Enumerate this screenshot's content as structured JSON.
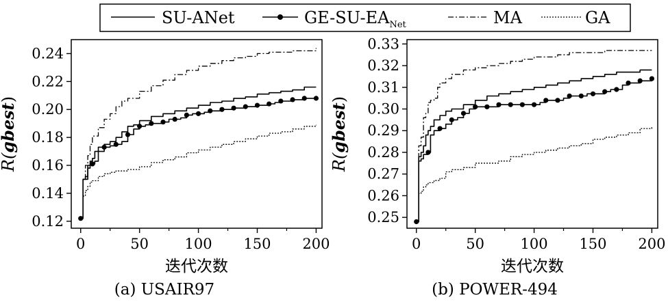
{
  "legend": {
    "items": [
      {
        "key": "suanet",
        "label": "SU-ANet",
        "sub": ""
      },
      {
        "key": "gesu",
        "label": "GE-SU-EA",
        "sub": "Net"
      },
      {
        "key": "ma",
        "label": "MA",
        "sub": ""
      },
      {
        "key": "ga",
        "label": "GA",
        "sub": ""
      }
    ]
  },
  "chart_data": [
    {
      "type": "line",
      "caption": "(a) USAIR97",
      "xlabel": "迭代次数",
      "ylabel_prefix": "R(",
      "ylabel_main": "gbest",
      "ylabel_suffix": ")",
      "xlim": [
        -8,
        205
      ],
      "ylim": [
        0.115,
        0.25
      ],
      "xticks": [
        0,
        50,
        100,
        150,
        200
      ],
      "xtick_labels": [
        "0",
        "50",
        "100",
        "150",
        "200"
      ],
      "yticks": [
        0.12,
        0.14,
        0.16,
        0.18,
        0.2,
        0.22,
        0.24
      ],
      "ytick_labels": [
        "0.12",
        "0.14",
        "0.16",
        "0.18",
        "0.20",
        "0.22",
        "0.24"
      ],
      "series": [
        {
          "key": "ma",
          "style": "dashdot",
          "x": [
            0,
            2,
            4,
            6,
            8,
            10,
            15,
            20,
            25,
            30,
            35,
            40,
            50,
            60,
            70,
            80,
            90,
            100,
            110,
            120,
            130,
            140,
            150,
            160,
            170,
            180,
            190,
            200
          ],
          "y": [
            0.122,
            0.15,
            0.16,
            0.167,
            0.175,
            0.181,
            0.187,
            0.193,
            0.197,
            0.202,
            0.206,
            0.208,
            0.213,
            0.217,
            0.221,
            0.225,
            0.228,
            0.231,
            0.233,
            0.235,
            0.237,
            0.238,
            0.24,
            0.241,
            0.241,
            0.242,
            0.242,
            0.244
          ]
        },
        {
          "key": "suanet",
          "style": "solid",
          "x": [
            0,
            2,
            4,
            6,
            8,
            10,
            12,
            15,
            20,
            25,
            30,
            35,
            40,
            45,
            50,
            60,
            70,
            80,
            90,
            100,
            110,
            120,
            130,
            140,
            150,
            160,
            170,
            180,
            190,
            200
          ],
          "y": [
            0.122,
            0.15,
            0.152,
            0.16,
            0.163,
            0.165,
            0.17,
            0.173,
            0.175,
            0.177,
            0.18,
            0.184,
            0.188,
            0.189,
            0.192,
            0.195,
            0.197,
            0.199,
            0.201,
            0.203,
            0.205,
            0.206,
            0.208,
            0.209,
            0.211,
            0.212,
            0.213,
            0.214,
            0.216,
            0.216
          ]
        },
        {
          "key": "gesu",
          "style": "solid-marker",
          "x": [
            0,
            2,
            4,
            6,
            8,
            10,
            12,
            15,
            20,
            25,
            30,
            35,
            40,
            45,
            50,
            55,
            60,
            65,
            70,
            75,
            80,
            85,
            90,
            95,
            100,
            105,
            110,
            115,
            120,
            125,
            130,
            135,
            140,
            145,
            150,
            155,
            160,
            165,
            170,
            175,
            180,
            185,
            190,
            195,
            200
          ],
          "y": [
            0.122,
            0.15,
            0.15,
            0.158,
            0.16,
            0.161,
            0.163,
            0.17,
            0.173,
            0.174,
            0.175,
            0.177,
            0.182,
            0.186,
            0.188,
            0.189,
            0.19,
            0.19,
            0.191,
            0.193,
            0.193,
            0.194,
            0.196,
            0.197,
            0.197,
            0.198,
            0.199,
            0.199,
            0.2,
            0.2,
            0.201,
            0.201,
            0.202,
            0.202,
            0.203,
            0.203,
            0.204,
            0.205,
            0.206,
            0.206,
            0.207,
            0.207,
            0.208,
            0.208,
            0.208
          ]
        },
        {
          "key": "ga",
          "style": "dotted",
          "x": [
            0,
            2,
            4,
            6,
            8,
            10,
            15,
            20,
            25,
            30,
            40,
            50,
            60,
            70,
            80,
            90,
            100,
            110,
            120,
            130,
            140,
            150,
            160,
            170,
            180,
            190,
            200
          ],
          "y": [
            0.122,
            0.138,
            0.142,
            0.145,
            0.148,
            0.149,
            0.152,
            0.154,
            0.155,
            0.156,
            0.157,
            0.159,
            0.162,
            0.164,
            0.166,
            0.169,
            0.171,
            0.173,
            0.175,
            0.177,
            0.179,
            0.181,
            0.183,
            0.184,
            0.186,
            0.188,
            0.189
          ]
        }
      ],
      "marker_x": [
        0,
        10,
        20,
        30,
        40,
        50,
        60,
        70,
        80,
        90,
        100,
        110,
        120,
        130,
        140,
        150,
        160,
        170,
        180,
        190,
        200
      ]
    },
    {
      "type": "line",
      "caption": "(b) POWER-494",
      "xlabel": "迭代次数",
      "ylabel_prefix": "R(",
      "ylabel_main": "gbest",
      "ylabel_suffix": ")",
      "xlim": [
        -8,
        205
      ],
      "ylim": [
        0.245,
        0.332
      ],
      "xticks": [
        0,
        50,
        100,
        150,
        200
      ],
      "xtick_labels": [
        "0",
        "50",
        "100",
        "150",
        "200"
      ],
      "yticks": [
        0.25,
        0.26,
        0.27,
        0.28,
        0.29,
        0.3,
        0.31,
        0.32,
        0.33
      ],
      "ytick_labels": [
        "0.25",
        "0.26",
        "0.27",
        "0.28",
        "0.29",
        "0.30",
        "0.31",
        "0.32",
        "0.33"
      ],
      "series": [
        {
          "key": "ma",
          "style": "dashdot",
          "x": [
            0,
            2,
            4,
            6,
            8,
            10,
            12,
            15,
            18,
            20,
            25,
            30,
            40,
            50,
            60,
            70,
            80,
            90,
            100,
            110,
            120,
            130,
            140,
            150,
            160,
            170,
            180,
            190,
            200
          ],
          "y": [
            0.248,
            0.283,
            0.287,
            0.296,
            0.298,
            0.303,
            0.304,
            0.305,
            0.31,
            0.312,
            0.314,
            0.316,
            0.318,
            0.319,
            0.32,
            0.321,
            0.322,
            0.323,
            0.324,
            0.324,
            0.325,
            0.326,
            0.326,
            0.326,
            0.327,
            0.327,
            0.327,
            0.327,
            0.327
          ]
        },
        {
          "key": "suanet",
          "style": "solid",
          "x": [
            0,
            2,
            4,
            6,
            8,
            10,
            12,
            15,
            20,
            25,
            30,
            40,
            50,
            60,
            70,
            80,
            90,
            100,
            110,
            120,
            130,
            140,
            150,
            160,
            170,
            180,
            190,
            200
          ],
          "y": [
            0.248,
            0.278,
            0.28,
            0.283,
            0.288,
            0.29,
            0.292,
            0.295,
            0.297,
            0.299,
            0.3,
            0.302,
            0.304,
            0.306,
            0.307,
            0.308,
            0.309,
            0.31,
            0.311,
            0.312,
            0.313,
            0.314,
            0.315,
            0.316,
            0.317,
            0.317,
            0.318,
            0.318
          ]
        },
        {
          "key": "gesu",
          "style": "solid-marker",
          "x": [
            0,
            2,
            4,
            6,
            8,
            10,
            12,
            15,
            20,
            25,
            30,
            35,
            40,
            45,
            50,
            55,
            60,
            65,
            70,
            75,
            80,
            85,
            90,
            95,
            100,
            105,
            110,
            115,
            120,
            125,
            130,
            135,
            140,
            145,
            150,
            155,
            160,
            165,
            170,
            175,
            180,
            185,
            190,
            195,
            200
          ],
          "y": [
            0.248,
            0.276,
            0.277,
            0.279,
            0.279,
            0.28,
            0.288,
            0.29,
            0.291,
            0.293,
            0.295,
            0.296,
            0.298,
            0.3,
            0.301,
            0.301,
            0.301,
            0.301,
            0.302,
            0.302,
            0.302,
            0.302,
            0.302,
            0.302,
            0.302,
            0.303,
            0.304,
            0.304,
            0.304,
            0.305,
            0.306,
            0.306,
            0.306,
            0.307,
            0.307,
            0.307,
            0.308,
            0.309,
            0.309,
            0.311,
            0.312,
            0.312,
            0.313,
            0.313,
            0.314
          ]
        },
        {
          "key": "ga",
          "style": "dotted",
          "x": [
            0,
            2,
            4,
            6,
            8,
            10,
            15,
            20,
            25,
            30,
            40,
            50,
            60,
            70,
            80,
            90,
            100,
            110,
            120,
            130,
            140,
            150,
            160,
            170,
            180,
            190,
            200
          ],
          "y": [
            0.248,
            0.261,
            0.262,
            0.264,
            0.265,
            0.266,
            0.267,
            0.268,
            0.271,
            0.272,
            0.273,
            0.275,
            0.275,
            0.276,
            0.278,
            0.279,
            0.28,
            0.281,
            0.282,
            0.283,
            0.284,
            0.286,
            0.287,
            0.288,
            0.289,
            0.291,
            0.292
          ]
        }
      ],
      "marker_x": [
        0,
        10,
        20,
        30,
        40,
        50,
        60,
        70,
        80,
        90,
        100,
        110,
        120,
        130,
        140,
        150,
        160,
        170,
        180,
        190,
        200
      ]
    }
  ]
}
